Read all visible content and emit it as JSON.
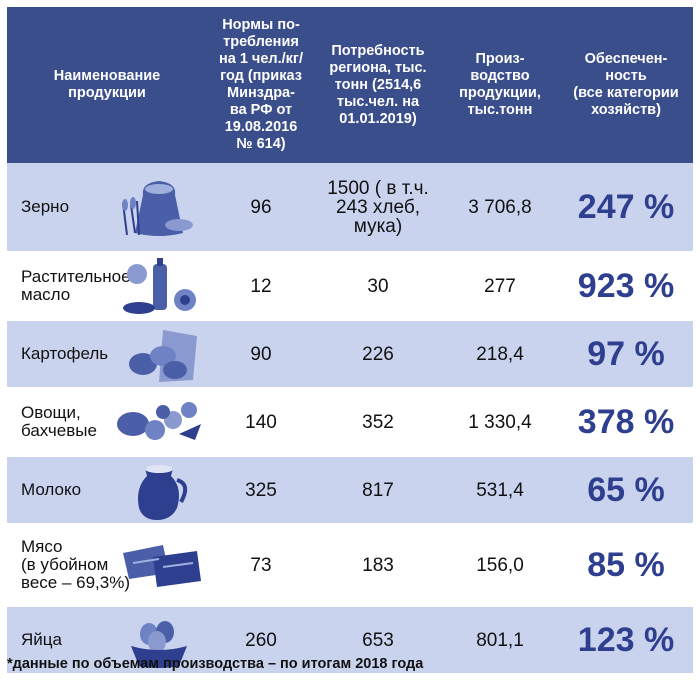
{
  "headers": {
    "col1": "Наименование\nпродукции",
    "col2": "Нормы по-\nтребления\nна 1 чел./кг/\nгод (приказ\nМинздра-\nва РФ от\n19.08.2016\n№ 614)",
    "col3": "Потребность\nрегиона, тыс.\nтонн (2514,6\nтыс.чел. на\n01.01.2019)",
    "col4": "Произ-\nводство\nпродукции,\nтыс.тонн",
    "col5": "Обеспечен-\nность\n(все категории\nхозяйств)"
  },
  "rows": [
    {
      "name": "Зерно",
      "norm": "96",
      "need": "1500 ( в т.ч.\n243 хлеб,\nмука)",
      "production": "3 706,8",
      "provision": "247 %",
      "icon": "grain-sack-icon"
    },
    {
      "name": "Растительное\nмасло",
      "norm": "12",
      "need": "30",
      "production": "277",
      "provision": "923 %",
      "icon": "sunflower-oil-icon"
    },
    {
      "name": "Картофель",
      "norm": "90",
      "need": "226",
      "production": "218,4",
      "provision": "97 %",
      "icon": "potato-sack-icon"
    },
    {
      "name": "Овощи,\nбахчевые",
      "norm": "140",
      "need": "352",
      "production": "1 330,4",
      "provision": "378 %",
      "icon": "vegetables-icon"
    },
    {
      "name": "Молоко",
      "norm": "325",
      "need": "817",
      "production": "531,4",
      "provision": "65 %",
      "icon": "milk-jug-icon"
    },
    {
      "name": "Мясо\n(в убойном\nвесе – 69,3%)",
      "norm": "73",
      "need": "183",
      "production": "156,0",
      "provision": "85 %",
      "icon": "meat-icon"
    },
    {
      "name": "Яйца",
      "norm": "260",
      "need": "653",
      "production": "801,1",
      "provision": "123 %",
      "icon": "egg-basket-icon"
    }
  ],
  "footnote": "*данные по объемам производства – по итогам 2018 года",
  "colors": {
    "header_bg": "#3b4e8c",
    "row_tint": "#c9d3ee",
    "percent_text": "#2f3f8f",
    "icon_tint": "#4a5fa8"
  }
}
